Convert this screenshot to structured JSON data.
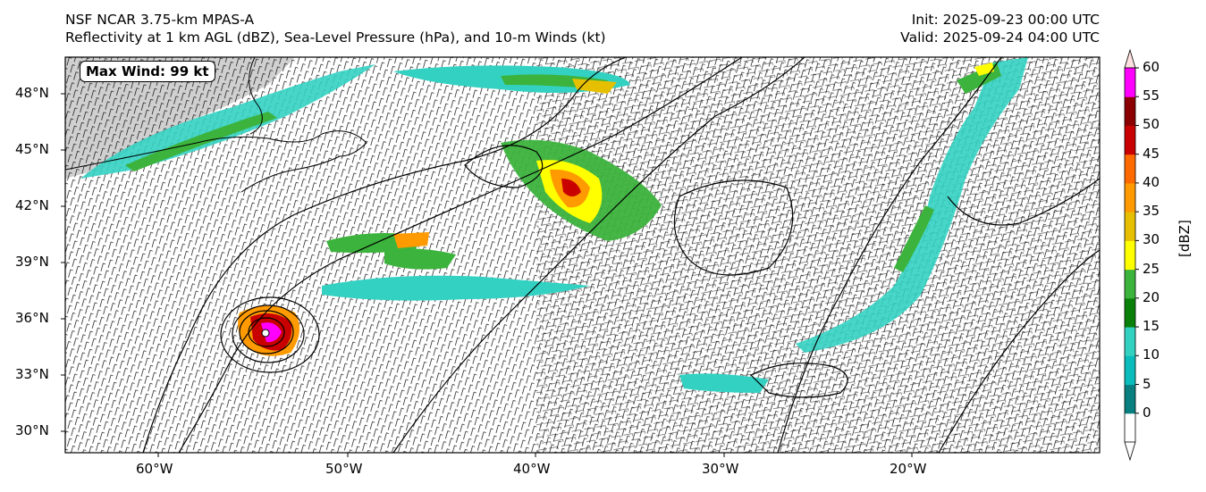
{
  "title": {
    "line1": "NSF NCAR 3.75-km MPAS-A",
    "line2": "Reflectivity at 1 km AGL (dBZ), Sea-Level Pressure (hPa), and 10-m Winds (kt)",
    "init": "Init: 2025-09-23 00:00 UTC",
    "valid": "Valid: 2025-09-24 04:00 UTC"
  },
  "annotation": {
    "max_wind": "Max Wind: 99 kt"
  },
  "axes": {
    "lat_labels": [
      "48°N",
      "45°N",
      "42°N",
      "39°N",
      "36°N",
      "33°N",
      "30°N"
    ],
    "lon_labels": [
      "60°W",
      "50°W",
      "40°W",
      "30°W",
      "20°W"
    ]
  },
  "colorbar": {
    "unit": "[dBZ]",
    "ticks": [
      "0",
      "5",
      "10",
      "15",
      "20",
      "25",
      "30",
      "35",
      "40",
      "45",
      "50",
      "55",
      "60"
    ],
    "colors": [
      "#0a7f7f",
      "#0bbcbc",
      "#33d1c2",
      "#0a800a",
      "#3cb33c",
      "#ffff00",
      "#e6c000",
      "#ff9a00",
      "#ff6a00",
      "#c80000",
      "#8b0000",
      "#ff00ff",
      "#ffe0e0"
    ]
  },
  "map": {
    "colors": {
      "land": "#c8c8c8",
      "coast": "#000000",
      "isobar": "#000000",
      "barb": "#000000"
    }
  }
}
